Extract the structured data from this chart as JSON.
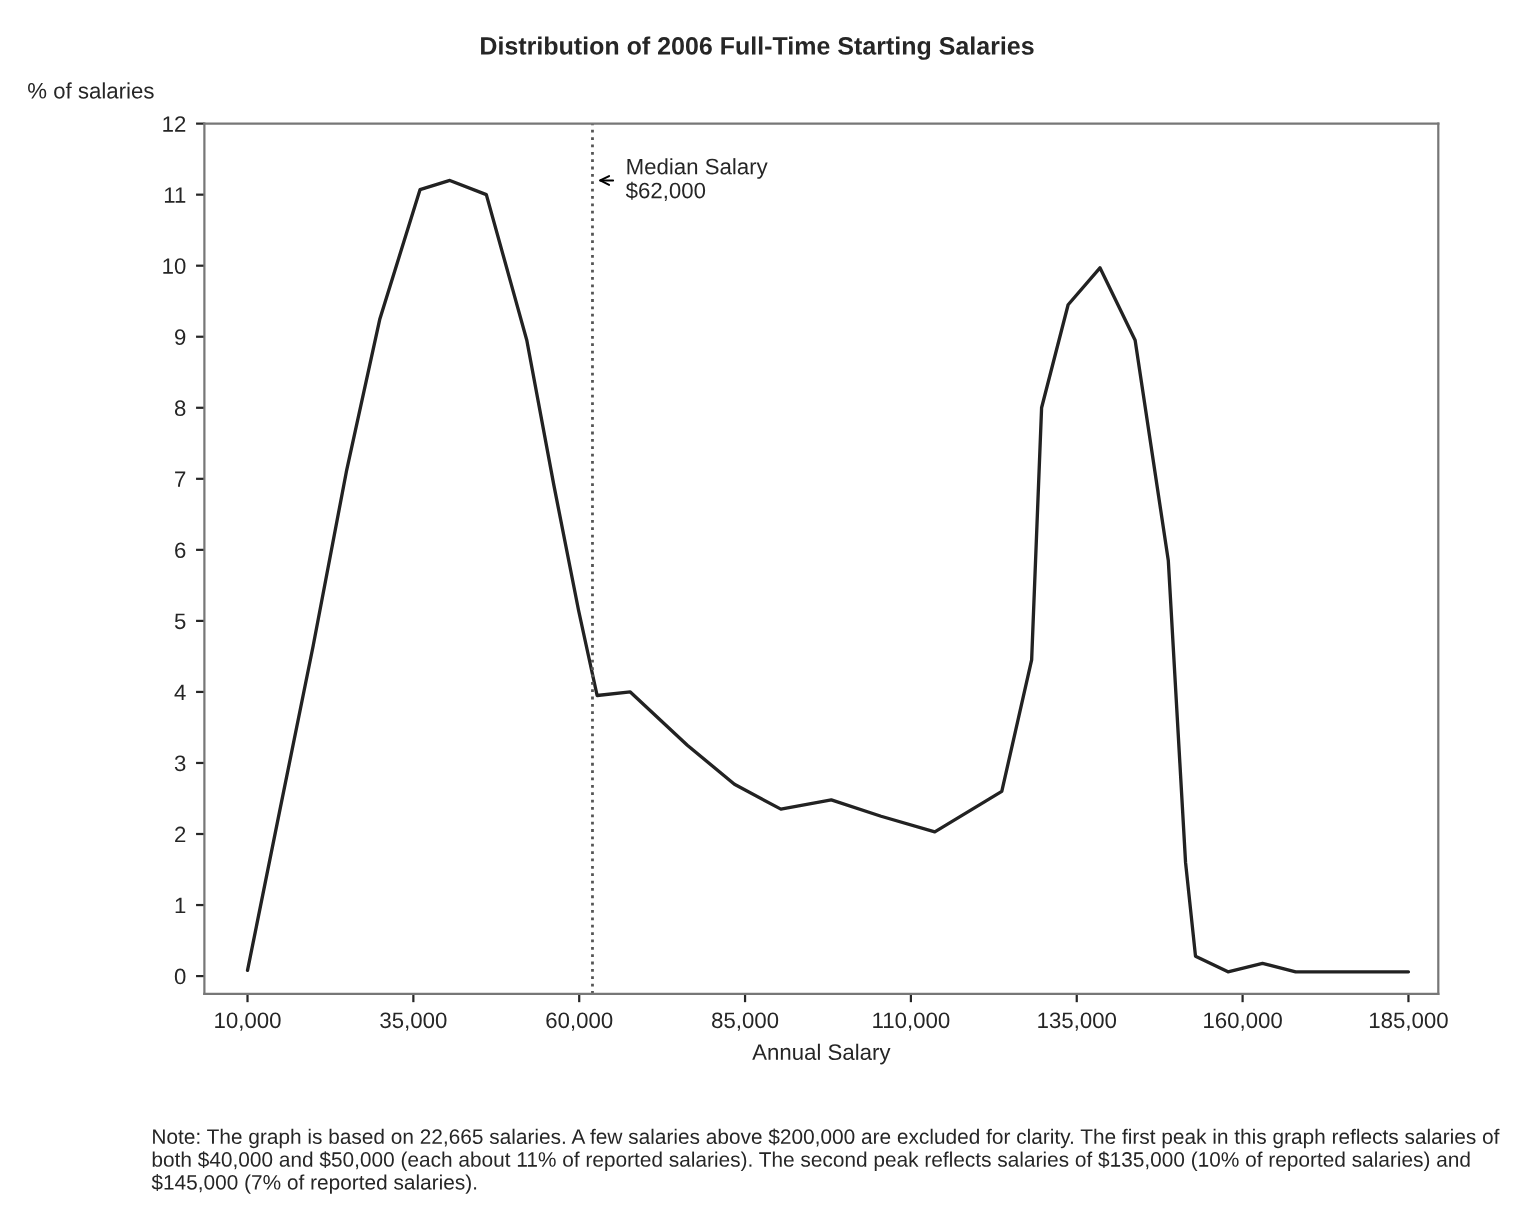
{
  "chart_data": {
    "type": "line",
    "title": "Distribution of 2006 Full-Time Starting Salaries",
    "xlabel": "Annual Salary",
    "ylabel": "% of salaries",
    "x": [
      10000,
      14800,
      19900,
      24900,
      29950,
      36000,
      40500,
      46000,
      52100,
      56200,
      59900,
      62700,
      67700,
      76300,
      83400,
      90400,
      98000,
      105500,
      113600,
      123700,
      128200,
      129700,
      133700,
      138500,
      143800,
      148800,
      151400,
      152900,
      157800,
      163000,
      168000,
      185000
    ],
    "series": [
      {
        "color": "#222222",
        "values": [
          0.08,
          2.3,
          4.65,
          7.1,
          9.25,
          11.07,
          11.2,
          11.0,
          8.95,
          6.9,
          5.15,
          3.95,
          4.0,
          3.25,
          2.7,
          2.35,
          2.48,
          2.25,
          2.03,
          2.6,
          4.45,
          8.0,
          9.45,
          9.97,
          8.95,
          5.85,
          1.6,
          0.28,
          0.06,
          0.18,
          0.06,
          0.06
        ]
      }
    ],
    "xlim": [
      3500,
      189500
    ],
    "ylim": [
      -0.25,
      12
    ],
    "xticks": [
      {
        "value": 10000,
        "label": "10,000"
      },
      {
        "value": 35000,
        "label": "35,000"
      },
      {
        "value": 60000,
        "label": "60,000"
      },
      {
        "value": 85000,
        "label": "85,000"
      },
      {
        "value": 110000,
        "label": "110,000"
      },
      {
        "value": 135000,
        "label": "135,000"
      },
      {
        "value": 160000,
        "label": "160,000"
      },
      {
        "value": 185000,
        "label": "185,000"
      }
    ],
    "yticks": [
      0,
      1,
      2,
      3,
      4,
      5,
      6,
      7,
      8,
      9,
      10,
      11,
      12
    ],
    "ref_lines": [
      {
        "axis": "x",
        "value": 62000,
        "label": "Median Salary\n$62,000",
        "color": "#555555",
        "line_style": "dotted"
      }
    ],
    "annotations": [
      "Note: The graph is based on 22,665 salaries. A few salaries above $200,000 are excluded for clarity. The first peak in this graph reflects salaries of both $40,000 and $50,000 (each about 11% of reported salaries). The second peak reflects salaries of $135,000 (10% of reported salaries) and $145,000 (7% of reported salaries)."
    ],
    "grid": false,
    "legend": false,
    "marker": "none",
    "line_style": "solid"
  }
}
